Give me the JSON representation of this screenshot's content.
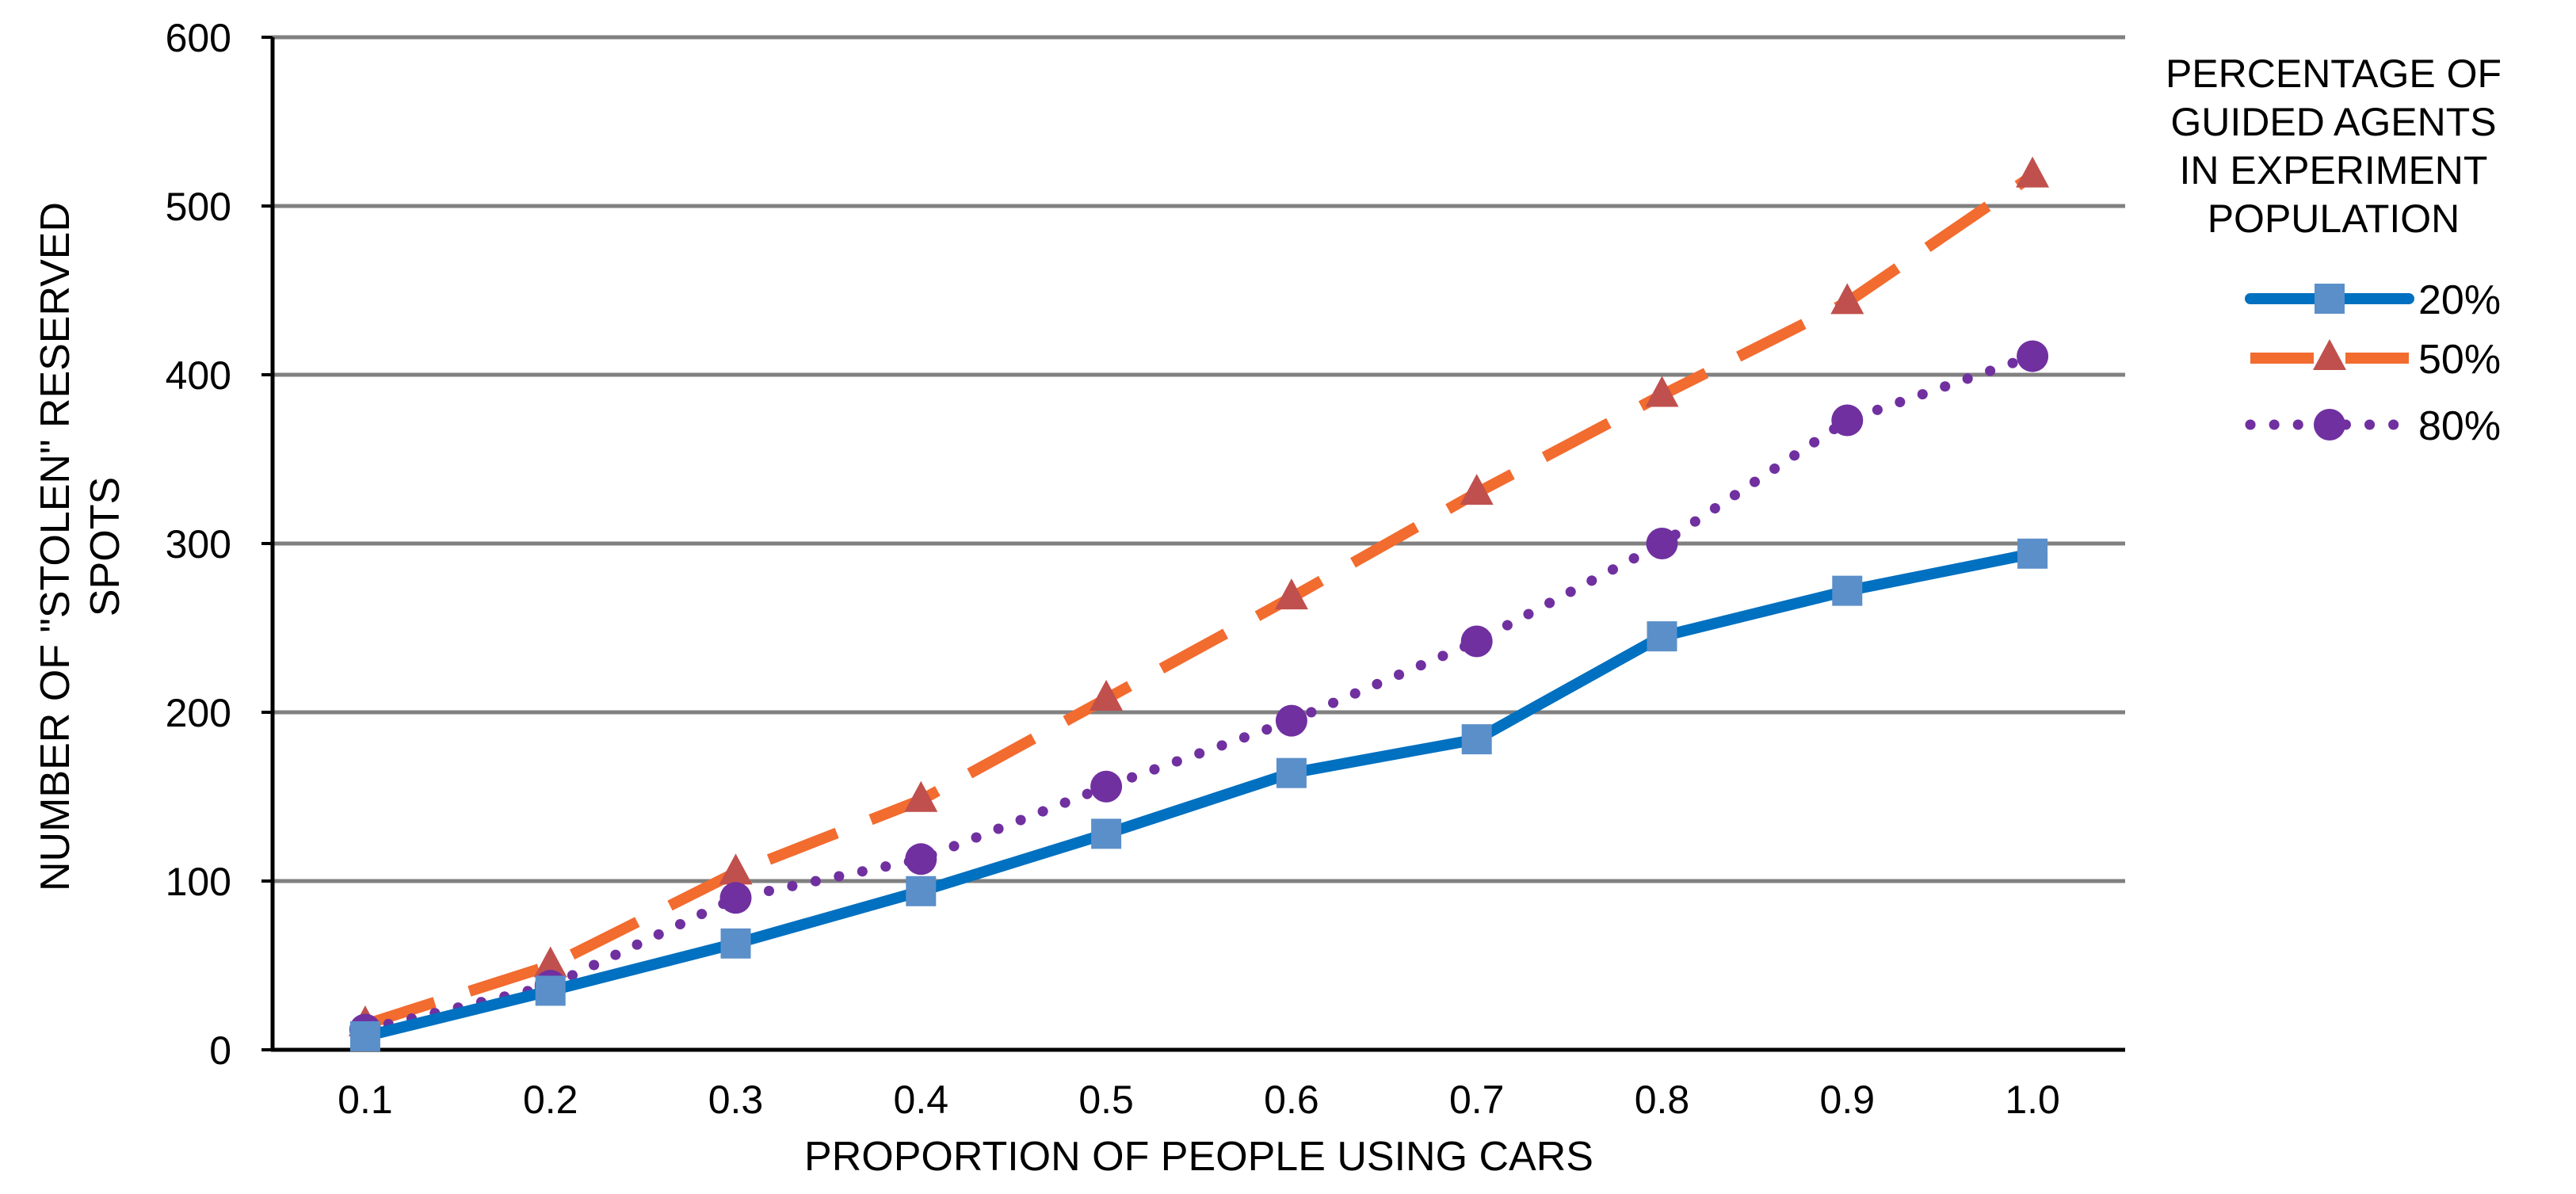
{
  "chart_data": {
    "type": "line",
    "title": "",
    "xlabel": "PROPORTION OF PEOPLE USING CARS",
    "ylabel_lines": [
      "NUMBER OF \"STOLEN\" RESERVED",
      "SPOTS"
    ],
    "categories": [
      "0.1",
      "0.2",
      "0.3",
      "0.4",
      "0.5",
      "0.6",
      "0.7",
      "0.8",
      "0.9",
      "1.0"
    ],
    "ylim": [
      0,
      600
    ],
    "yticks": [
      0,
      100,
      200,
      300,
      400,
      500,
      600
    ],
    "grid": true,
    "legend_position": "right",
    "legend_title_lines": [
      "PERCENTAGE OF",
      "GUIDED AGENTS",
      "IN EXPERIMENT",
      "POPULATION"
    ],
    "series": [
      {
        "name": "20%",
        "values": [
          8,
          35,
          63,
          94,
          128,
          164,
          184,
          245,
          272,
          294
        ],
        "color": "#0070c0",
        "marker_color": "#5b8fc9",
        "marker": "square",
        "line_style": "solid"
      },
      {
        "name": "50%",
        "values": [
          15,
          50,
          105,
          148,
          208,
          268,
          330,
          388,
          443,
          518
        ],
        "color": "#f26b2f",
        "marker_color": "#c0504d",
        "marker": "triangle",
        "line_style": "dashed"
      },
      {
        "name": "80%",
        "values": [
          12,
          38,
          90,
          113,
          156,
          195,
          242,
          300,
          373,
          411
        ],
        "color": "#7030a0",
        "marker_color": "#7030a0",
        "marker": "circle",
        "line_style": "dotted"
      }
    ]
  }
}
